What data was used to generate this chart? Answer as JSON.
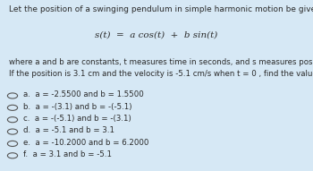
{
  "bg_color": "#d6e8f5",
  "title_text": "Let the position of a swinging pendulum in simple harmonic motion be given by",
  "formula": "s(t)  =  a cos(t)  +  b sin(t)",
  "body_text": "where a and b are constants, t measures time in seconds, and s measures position in centimeters.\nIf the position is 3.1 cm and the velocity is -5.1 cm/s when t = 0 , find the values of a and b .",
  "options": [
    "a.  a = -2.5500 and b = 1.5500",
    "b.  a = -(3.1) and b = -(-5.1)",
    "c.  a = -(-5.1) and b = -(3.1)",
    "d.  a = -5.1 and b = 3.1",
    "e.  a = -10.2000 and b = 6.2000",
    "f.  a = 3.1 and b = -5.1"
  ],
  "selected": [],
  "text_color": "#2a2a2a",
  "font_size_title": 6.5,
  "font_size_formula": 7.5,
  "font_size_body": 6.2,
  "font_size_option": 6.2
}
